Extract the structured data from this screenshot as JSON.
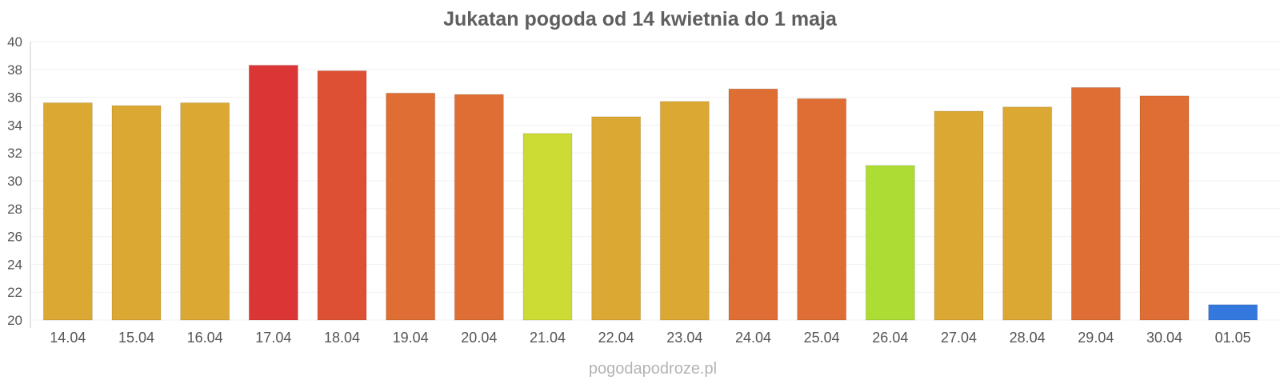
{
  "chart_data": {
    "type": "bar",
    "title": "Jukatan pogoda od 14 kwietnia do 1 maja",
    "categories": [
      "14.04",
      "15.04",
      "16.04",
      "17.04",
      "18.04",
      "19.04",
      "20.04",
      "21.04",
      "22.04",
      "23.04",
      "24.04",
      "25.04",
      "26.04",
      "27.04",
      "28.04",
      "29.04",
      "30.04",
      "01.05"
    ],
    "values": [
      35.6,
      35.4,
      35.6,
      38.3,
      37.9,
      36.3,
      36.2,
      33.4,
      34.6,
      35.7,
      36.6,
      35.9,
      31.1,
      35.0,
      35.3,
      36.7,
      36.1,
      21.1
    ],
    "colors": [
      "#dca834",
      "#dca834",
      "#dca834",
      "#dc3535",
      "#dd5033",
      "#de6e34",
      "#de6e34",
      "#cddc34",
      "#dca834",
      "#dca834",
      "#de6e34",
      "#de6e34",
      "#addc34",
      "#dca834",
      "#dca834",
      "#de6e34",
      "#de6e34",
      "#3578dd"
    ],
    "ylim": [
      20,
      40
    ],
    "yticks": [
      20,
      22,
      24,
      26,
      28,
      30,
      32,
      34,
      36,
      38,
      40
    ],
    "xlabel": "",
    "ylabel": "",
    "grid": true
  },
  "watermark": "pogodapodroze.pl"
}
